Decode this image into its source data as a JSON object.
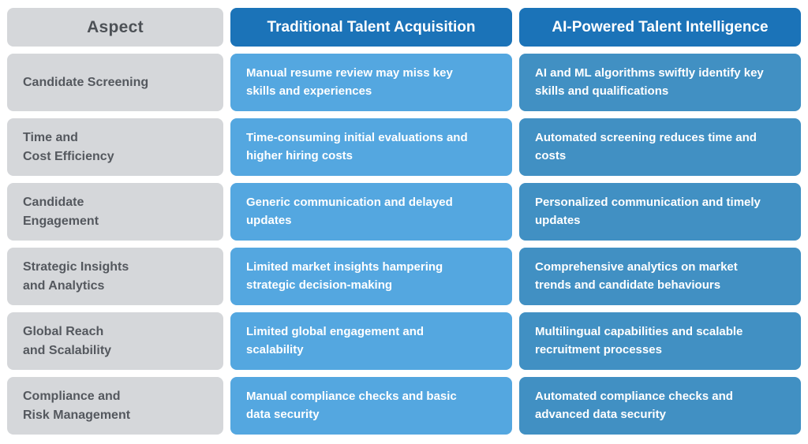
{
  "colors": {
    "background": "#ffffff",
    "header_blue": "#1b73b8",
    "traditional_cell_blue": "#54a7e0",
    "ai_cell_blue": "#4190c3",
    "aspect_gray": "#d5d7da",
    "aspect_text_gray": "#54585e",
    "cell_text": "#ffffff"
  },
  "table": {
    "headers": {
      "aspect": "Aspect",
      "traditional": "Traditional Talent Acquisition",
      "ai": "AI-Powered Talent Intelligence"
    },
    "rows": [
      {
        "aspect": "Candidate Screening",
        "traditional": "Manual resume review may miss key\nskills and experiences",
        "ai": "AI and ML algorithms swiftly identify key\nskills and qualifications"
      },
      {
        "aspect": "Time and\nCost Efficiency",
        "traditional": "Time-consuming initial evaluations and\nhigher hiring costs",
        "ai": "Automated screening reduces time and\ncosts"
      },
      {
        "aspect": "Candidate\nEngagement",
        "traditional": "Generic communication and delayed\nupdates",
        "ai": "Personalized communication and timely\nupdates"
      },
      {
        "aspect": "Strategic Insights\nand Analytics",
        "traditional": "Limited market insights hampering\nstrategic decision-making",
        "ai": "Comprehensive analytics on market\ntrends and candidate behaviours"
      },
      {
        "aspect": "Global Reach\nand Scalability",
        "traditional": "Limited global engagement and\nscalability",
        "ai": "Multilingual capabilities and scalable\nrecruitment processes"
      },
      {
        "aspect": "Compliance and\nRisk Management",
        "traditional": "Manual compliance checks and basic\ndata security",
        "ai": "Automated compliance checks and\nadvanced data security"
      }
    ]
  }
}
